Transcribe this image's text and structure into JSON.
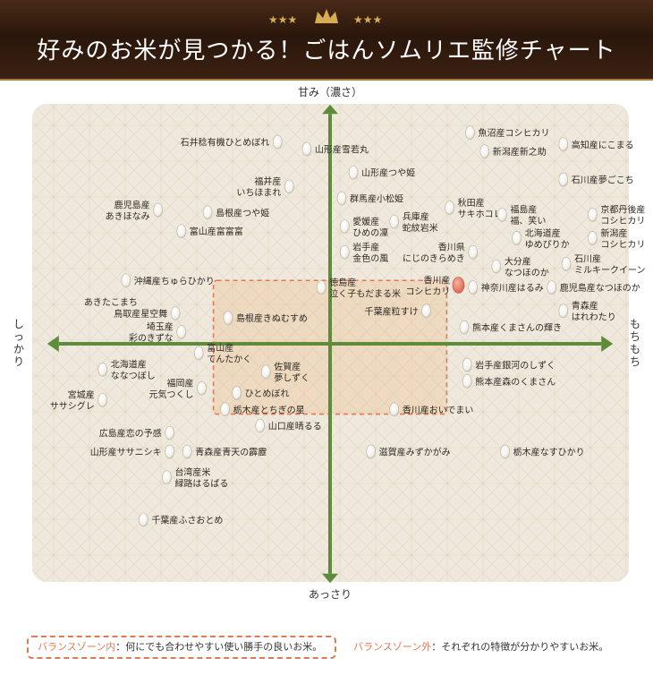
{
  "header": {
    "title": "好みのお米が見つかる！ごはんソムリエ監修チャート",
    "accent": "#d6ad55"
  },
  "chart_data": {
    "type": "scatter",
    "axes": {
      "top": "甘み（濃さ）",
      "bottom": "あっさり",
      "left": "しっかり",
      "right": "もちもち"
    },
    "xlim": [
      -100,
      100
    ],
    "ylim": [
      -100,
      100
    ],
    "balance_zone": {
      "x": [
        -40,
        40
      ],
      "y": [
        -30,
        27
      ]
    },
    "highlight_color": "#e67a64",
    "points": [
      {
        "label": "石井稔有機ひとめぼれ",
        "x": -18,
        "y": 86,
        "anchor": "end"
      },
      {
        "label": "山形産雪若丸",
        "x": -8,
        "y": 83,
        "anchor": "start"
      },
      {
        "label": "山形産つや姫",
        "x": 8,
        "y": 73,
        "anchor": "start"
      },
      {
        "label": "福井産\nいちほまれ",
        "x": -14,
        "y": 67,
        "anchor": "end"
      },
      {
        "label": "群馬産小松姫",
        "x": 4,
        "y": 62,
        "anchor": "start"
      },
      {
        "label": "鹿児島産\nあきほなみ",
        "x": -59,
        "y": 57,
        "anchor": "end"
      },
      {
        "label": "島根産つや姫",
        "x": -42,
        "y": 56,
        "anchor": "start"
      },
      {
        "label": "富山産富富富",
        "x": -51,
        "y": 48,
        "anchor": "start"
      },
      {
        "label": "愛媛産\nひめの凜",
        "x": 5,
        "y": 50,
        "anchor": "start"
      },
      {
        "label": "兵庫産\n蛇紋岩米",
        "x": 22,
        "y": 52,
        "anchor": "start"
      },
      {
        "label": "秋田産\nサキホコレ",
        "x": 41,
        "y": 58,
        "anchor": "start"
      },
      {
        "label": "岩手産\n金色の風",
        "x": 5,
        "y": 39,
        "anchor": "start"
      },
      {
        "label": "香川県\nにじのきらめき",
        "x": 49,
        "y": 39,
        "anchor": "end"
      },
      {
        "label": "魚沼産コシヒカリ",
        "x": 48,
        "y": 90,
        "anchor": "start"
      },
      {
        "label": "新潟産新之助",
        "x": 53,
        "y": 82,
        "anchor": "start"
      },
      {
        "label": "高知産にこまる",
        "x": 80,
        "y": 85,
        "anchor": "start"
      },
      {
        "label": "石川産夢ごこち",
        "x": 80,
        "y": 70,
        "anchor": "start"
      },
      {
        "label": "福島産\n福、笑い",
        "x": 59,
        "y": 55,
        "anchor": "start"
      },
      {
        "label": "京都丹後産\nコシヒカリ",
        "x": 90,
        "y": 55,
        "anchor": "start"
      },
      {
        "label": "北海道産\nゆめぴりか",
        "x": 64,
        "y": 45,
        "anchor": "start"
      },
      {
        "label": "新潟産\nコシヒカリ",
        "x": 90,
        "y": 45,
        "anchor": "start"
      },
      {
        "label": "大分産\nなつほのか",
        "x": 57,
        "y": 33,
        "anchor": "start"
      },
      {
        "label": "石川産\nミルキークイーン",
        "x": 81,
        "y": 34,
        "anchor": "start"
      },
      {
        "label": "沖縄産ちゅらひかり",
        "x": -70,
        "y": 27,
        "anchor": "start"
      },
      {
        "label": "徳島産\n泣く子もだまる米",
        "x": -3,
        "y": 24,
        "anchor": "start"
      },
      {
        "label": "香川産\nコシヒカリ",
        "x": 44,
        "y": 25,
        "anchor": "end",
        "highlight": true
      },
      {
        "label": "神奈川産はるみ",
        "x": 49,
        "y": 24,
        "anchor": "start"
      },
      {
        "label": "鹿児島産なつほのか",
        "x": 76,
        "y": 24,
        "anchor": "start"
      },
      {
        "label": "あきたこまち",
        "x": -66,
        "y": 18,
        "anchor": "end",
        "nodot": true
      },
      {
        "label": "島根産きぬむすめ",
        "x": -35,
        "y": 11,
        "anchor": "start"
      },
      {
        "label": "鳥取産星空舞",
        "x": -53,
        "y": 13,
        "anchor": "end"
      },
      {
        "label": "千葉産粒すけ",
        "x": 33,
        "y": 14,
        "anchor": "end"
      },
      {
        "label": "青森産\nはれわたり",
        "x": 80,
        "y": 14,
        "anchor": "start"
      },
      {
        "label": "埼玉産\n彩のきずな",
        "x": -51,
        "y": 5,
        "anchor": "end"
      },
      {
        "label": "熊本産くまさんの輝き",
        "x": 46,
        "y": 7,
        "anchor": "start"
      },
      {
        "label": "富山産\nてんたかく",
        "x": -45,
        "y": -4,
        "anchor": "start"
      },
      {
        "label": "北海道産\nななつぼし",
        "x": -78,
        "y": -11,
        "anchor": "start"
      },
      {
        "label": "佐賀産\n夢しずく",
        "x": -22,
        "y": -12,
        "anchor": "start"
      },
      {
        "label": "岩手産銀河のしずく",
        "x": 47,
        "y": -9,
        "anchor": "start"
      },
      {
        "label": "福岡産\n元気つくし",
        "x": -44,
        "y": -19,
        "anchor": "end"
      },
      {
        "label": "ひとめぼれ",
        "x": -32,
        "y": -21,
        "anchor": "start"
      },
      {
        "label": "熊本産森のくまさん",
        "x": 47,
        "y": -16,
        "anchor": "start"
      },
      {
        "label": "宮城産\nササシグレ",
        "x": -78,
        "y": -24,
        "anchor": "end"
      },
      {
        "label": "栃木産とちぎの星",
        "x": -36,
        "y": -28,
        "anchor": "start"
      },
      {
        "label": "香川産おいでまい",
        "x": 22,
        "y": -28,
        "anchor": "start"
      },
      {
        "label": "山口産晴るる",
        "x": -24,
        "y": -35,
        "anchor": "start"
      },
      {
        "label": "広島産恋の予感",
        "x": -55,
        "y": -38,
        "anchor": "end"
      },
      {
        "label": "山形産ササニシキ",
        "x": -55,
        "y": -46,
        "anchor": "end"
      },
      {
        "label": "青森産青天の霹靂",
        "x": -49,
        "y": -46,
        "anchor": "start"
      },
      {
        "label": "滋賀産みずかがみ",
        "x": 14,
        "y": -46,
        "anchor": "start"
      },
      {
        "label": "栃木産なすひかり",
        "x": 60,
        "y": -46,
        "anchor": "start"
      },
      {
        "label": "台湾産米\n緑路はるばる",
        "x": -56,
        "y": -57,
        "anchor": "start"
      },
      {
        "label": "千葉産ふさおとめ",
        "x": -64,
        "y": -75,
        "anchor": "start"
      }
    ]
  },
  "legend": {
    "inside_key": "バランスゾーン内",
    "inside_text": "：何にでも合わせやすい使い勝手の良いお米。",
    "outside_key": "バランスゾーン外",
    "outside_text": "：それぞれの特徴が分かりやすいお米。",
    "zone_color": "#e07a55"
  }
}
